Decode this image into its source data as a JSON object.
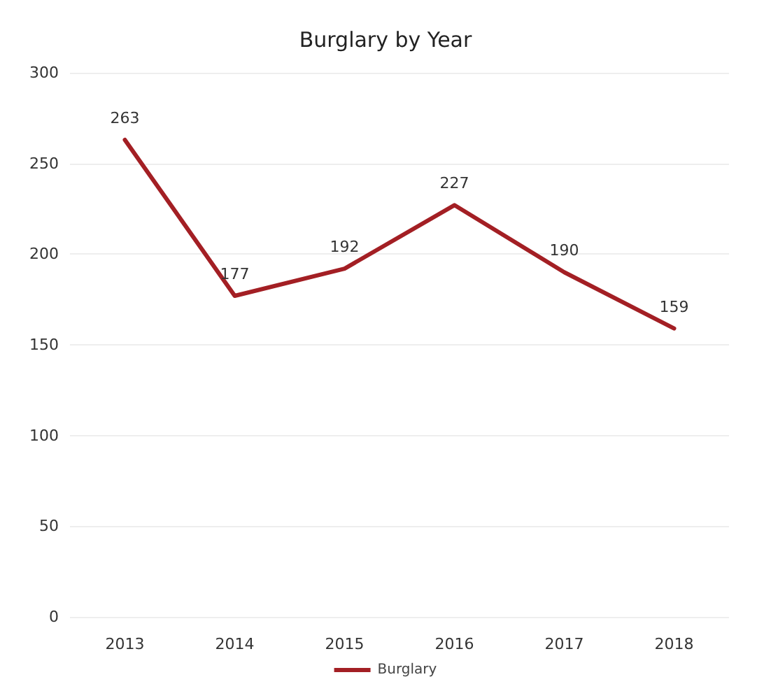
{
  "chart_data": {
    "type": "line",
    "title": "Burglary by Year",
    "categories": [
      "2013",
      "2014",
      "2015",
      "2016",
      "2017",
      "2018"
    ],
    "series": [
      {
        "name": "Burglary",
        "color": "#a31f24",
        "values": [
          263,
          177,
          192,
          227,
          190,
          159
        ]
      }
    ],
    "ylim": [
      0,
      300
    ],
    "yticks": [
      0,
      50,
      100,
      150,
      200,
      250,
      300
    ],
    "grid": "y",
    "legend": "bottom",
    "data_labels": true,
    "marker": "none"
  }
}
